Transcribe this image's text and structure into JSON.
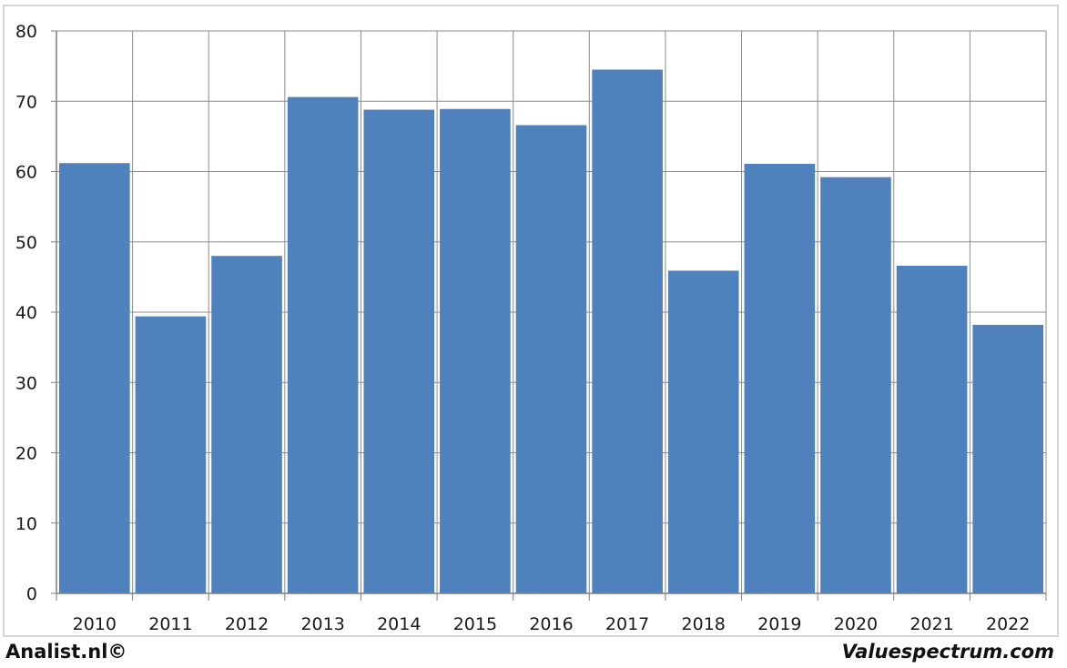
{
  "chart_data": {
    "type": "bar",
    "categories": [
      "2010",
      "2011",
      "2012",
      "2013",
      "2014",
      "2015",
      "2016",
      "2017",
      "2018",
      "2019",
      "2020",
      "2021",
      "2022"
    ],
    "values": [
      61.2,
      39.4,
      48.0,
      70.6,
      68.8,
      68.9,
      66.6,
      74.5,
      45.9,
      61.1,
      59.2,
      46.6,
      38.2
    ],
    "yticks": [
      "0",
      "10",
      "20",
      "30",
      "40",
      "50",
      "60",
      "70",
      "80"
    ],
    "ylim": [
      0,
      80
    ],
    "grid": true,
    "bar_color": "#4f81bd",
    "grid_color": "#8c8c8c"
  },
  "footer": {
    "left": "Analist.nl©",
    "right": "Valuespectrum.com"
  }
}
